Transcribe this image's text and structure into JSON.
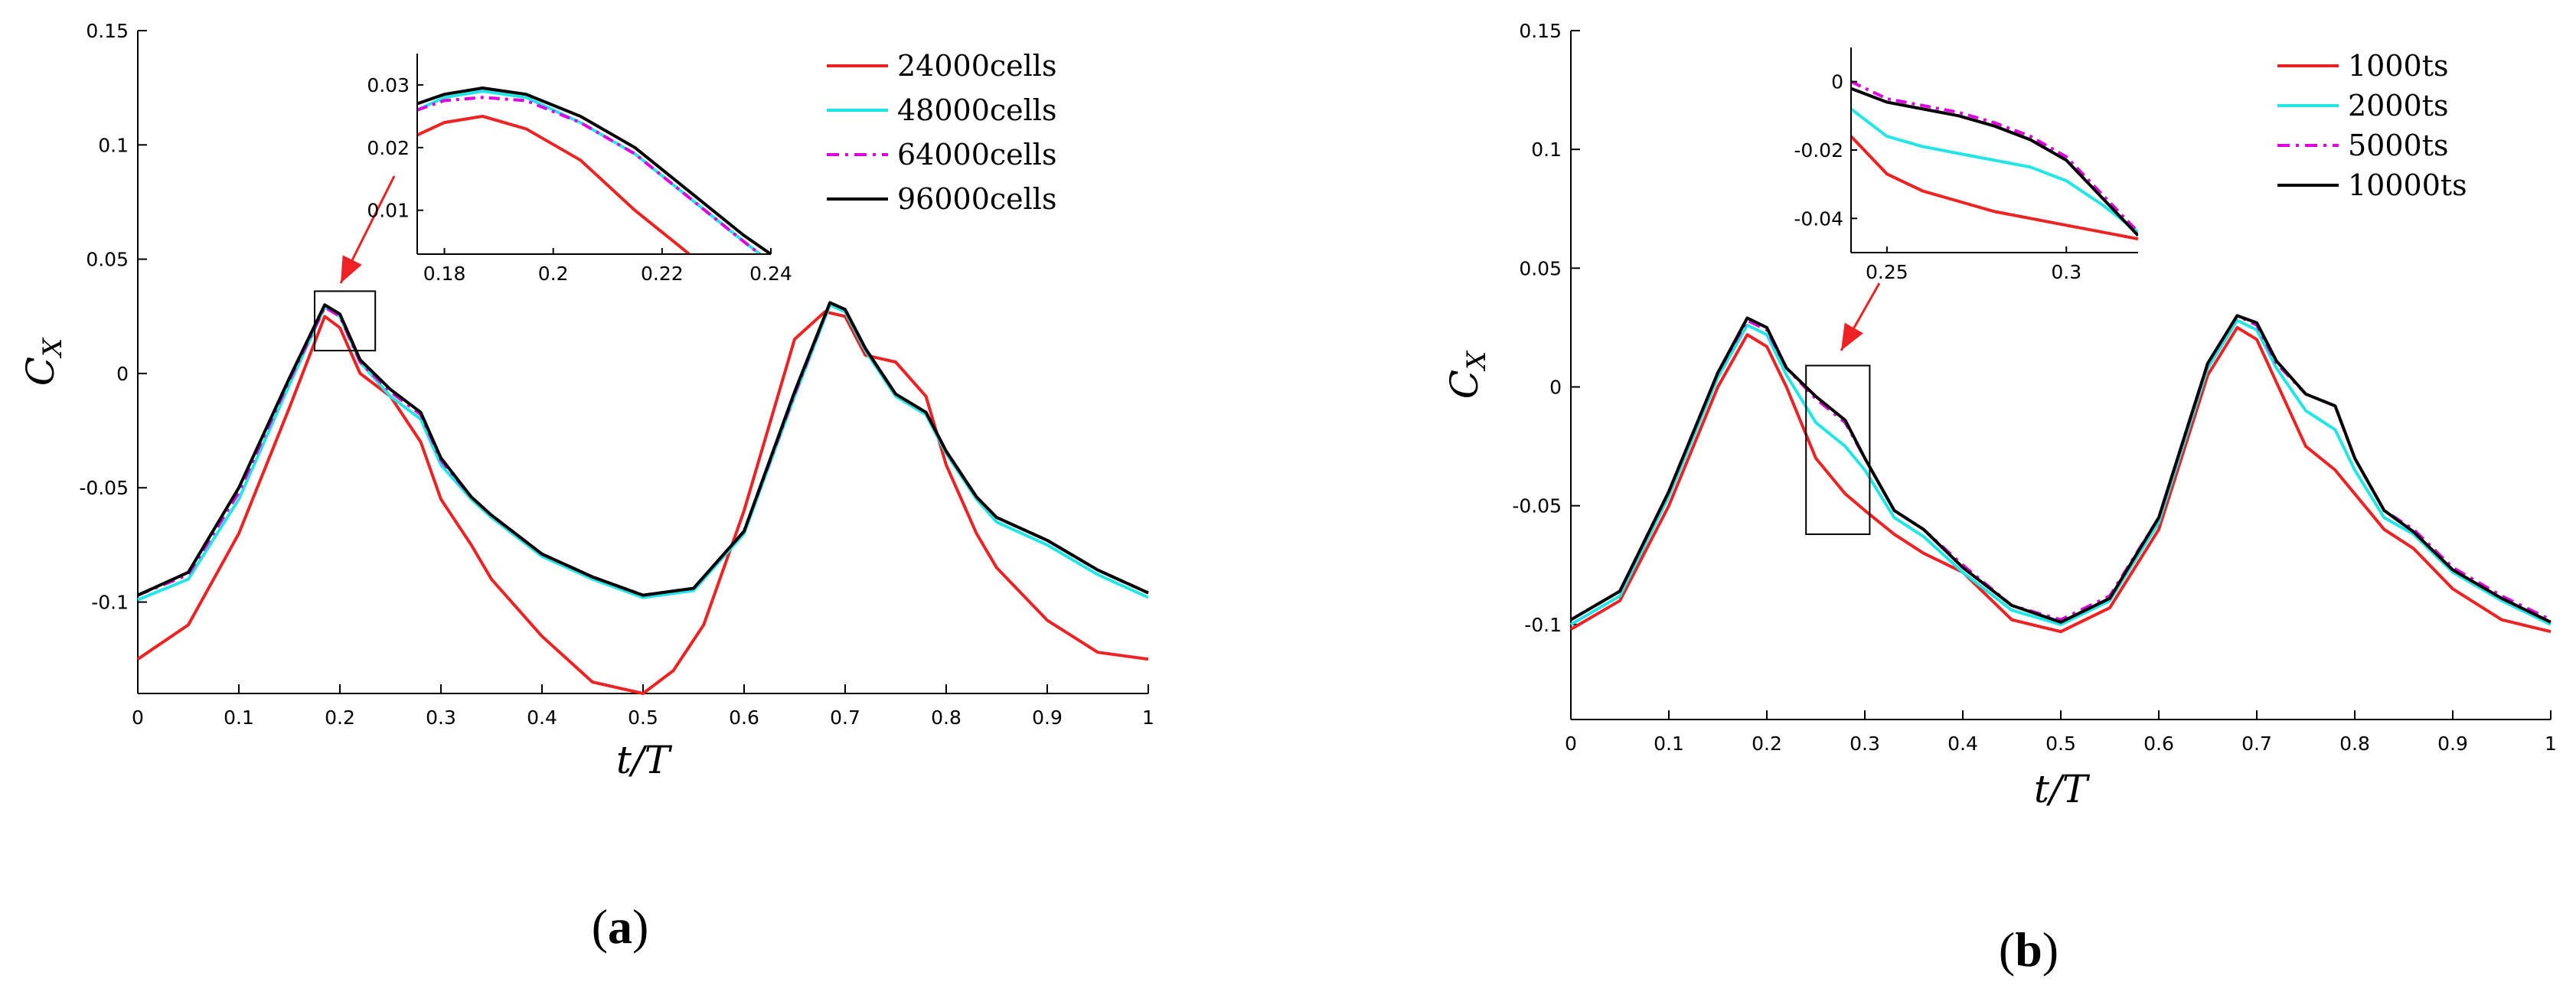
{
  "colors": {
    "red": "#ee2222",
    "cyan": "#22e6e6",
    "magenta": "#e000e0",
    "black": "#000000",
    "arrow": "#ee2222"
  },
  "chart_data": [
    {
      "type": "line",
      "panel": "a",
      "panel_label_parts": [
        "(",
        "a",
        ")"
      ],
      "xlabel": "t/T",
      "ylabel": "C_X",
      "ylabel_main": "C",
      "ylabel_sub": "X",
      "xlim": [
        0,
        1
      ],
      "ylim": [
        -0.14,
        0.15
      ],
      "xticks": [
        "0",
        "0.1",
        "0.2",
        "0.3",
        "0.4",
        "0.5",
        "0.6",
        "0.7",
        "0.8",
        "0.9",
        "1"
      ],
      "yticks": [
        "-0.1",
        "-0.05",
        "0",
        "0.05",
        "0.1",
        "0.15"
      ],
      "ytick_values": [
        -0.1,
        -0.05,
        0,
        0.05,
        0.1,
        0.15
      ],
      "legend_position": "top-right",
      "series": [
        {
          "name": "24000cells",
          "color": "red",
          "style": "solid",
          "x": [
            0,
            0.05,
            0.1,
            0.15,
            0.185,
            0.2,
            0.22,
            0.25,
            0.28,
            0.3,
            0.33,
            0.35,
            0.4,
            0.45,
            0.5,
            0.53,
            0.56,
            0.6,
            0.65,
            0.68,
            0.7,
            0.72,
            0.75,
            0.78,
            0.8,
            0.83,
            0.85,
            0.9,
            0.95,
            1.0
          ],
          "y": [
            -0.125,
            -0.11,
            -0.07,
            -0.015,
            0.025,
            0.02,
            0.0,
            -0.01,
            -0.03,
            -0.055,
            -0.075,
            -0.09,
            -0.115,
            -0.135,
            -0.14,
            -0.13,
            -0.11,
            -0.06,
            0.015,
            0.027,
            0.025,
            0.008,
            0.005,
            -0.01,
            -0.04,
            -0.07,
            -0.085,
            -0.108,
            -0.122,
            -0.125
          ]
        },
        {
          "name": "48000cells",
          "color": "cyan",
          "style": "solid",
          "x": [
            0,
            0.05,
            0.1,
            0.15,
            0.185,
            0.2,
            0.22,
            0.25,
            0.28,
            0.3,
            0.33,
            0.35,
            0.4,
            0.45,
            0.5,
            0.55,
            0.6,
            0.65,
            0.685,
            0.7,
            0.72,
            0.75,
            0.78,
            0.8,
            0.83,
            0.85,
            0.9,
            0.95,
            1.0
          ],
          "y": [
            -0.099,
            -0.09,
            -0.055,
            -0.005,
            0.029,
            0.025,
            0.005,
            -0.01,
            -0.02,
            -0.04,
            -0.055,
            -0.063,
            -0.08,
            -0.09,
            -0.098,
            -0.095,
            -0.07,
            -0.01,
            0.03,
            0.027,
            0.01,
            -0.01,
            -0.018,
            -0.035,
            -0.055,
            -0.065,
            -0.075,
            -0.088,
            -0.098
          ]
        },
        {
          "name": "64000cells",
          "color": "magenta",
          "style": "dashdot",
          "x": [
            0,
            0.05,
            0.1,
            0.15,
            0.185,
            0.2,
            0.22,
            0.25,
            0.28,
            0.3,
            0.33,
            0.35,
            0.4,
            0.45,
            0.5,
            0.55,
            0.6,
            0.65,
            0.685,
            0.7,
            0.72,
            0.75,
            0.78,
            0.8,
            0.83,
            0.85,
            0.9,
            0.95,
            1.0
          ],
          "y": [
            -0.097,
            -0.088,
            -0.052,
            -0.003,
            0.029,
            0.025,
            0.005,
            -0.008,
            -0.018,
            -0.038,
            -0.054,
            -0.062,
            -0.079,
            -0.089,
            -0.097,
            -0.094,
            -0.069,
            -0.009,
            0.031,
            0.028,
            0.011,
            -0.009,
            -0.017,
            -0.034,
            -0.054,
            -0.063,
            -0.073,
            -0.086,
            -0.096
          ]
        },
        {
          "name": "96000cells",
          "color": "black",
          "style": "solid",
          "x": [
            0,
            0.05,
            0.1,
            0.15,
            0.185,
            0.2,
            0.22,
            0.25,
            0.28,
            0.3,
            0.33,
            0.35,
            0.4,
            0.45,
            0.5,
            0.55,
            0.6,
            0.65,
            0.685,
            0.7,
            0.72,
            0.75,
            0.78,
            0.8,
            0.83,
            0.85,
            0.9,
            0.95,
            1.0
          ],
          "y": [
            -0.097,
            -0.087,
            -0.05,
            -0.002,
            0.03,
            0.026,
            0.006,
            -0.007,
            -0.017,
            -0.037,
            -0.054,
            -0.062,
            -0.079,
            -0.089,
            -0.097,
            -0.094,
            -0.069,
            -0.008,
            0.031,
            0.028,
            0.011,
            -0.009,
            -0.017,
            -0.034,
            -0.054,
            -0.063,
            -0.073,
            -0.086,
            -0.096
          ]
        }
      ],
      "zoom_box": {
        "x": [
          0.175,
          0.235
        ],
        "y": [
          0.01,
          0.036
        ]
      },
      "inset": {
        "xlim": [
          0.175,
          0.24
        ],
        "ylim": [
          0.003,
          0.035
        ],
        "xticks": [
          "0.18",
          "0.2",
          "0.22",
          "0.24"
        ],
        "xtick_values": [
          0.18,
          0.2,
          0.22,
          0.24
        ],
        "yticks": [
          "0.01",
          "0.02",
          "0.03"
        ],
        "ytick_values": [
          0.01,
          0.02,
          0.03
        ],
        "series": [
          {
            "color": "red",
            "style": "solid",
            "x": [
              0.175,
              0.18,
              0.187,
              0.195,
              0.205,
              0.215,
              0.225
            ],
            "y": [
              0.022,
              0.024,
              0.025,
              0.023,
              0.018,
              0.01,
              0.003
            ]
          },
          {
            "color": "cyan",
            "style": "solid",
            "x": [
              0.175,
              0.18,
              0.187,
              0.195,
              0.205,
              0.215,
              0.225,
              0.235,
              0.238
            ],
            "y": [
              0.026,
              0.028,
              0.029,
              0.028,
              0.024,
              0.019,
              0.012,
              0.005,
              0.003
            ]
          },
          {
            "color": "magenta",
            "style": "dashdot",
            "x": [
              0.175,
              0.18,
              0.187,
              0.195,
              0.205,
              0.215,
              0.225,
              0.235,
              0.238
            ],
            "y": [
              0.026,
              0.0275,
              0.028,
              0.0275,
              0.024,
              0.019,
              0.012,
              0.005,
              0.003
            ]
          },
          {
            "color": "black",
            "style": "solid",
            "x": [
              0.175,
              0.18,
              0.187,
              0.195,
              0.205,
              0.215,
              0.225,
              0.235,
              0.24
            ],
            "y": [
              0.027,
              0.0285,
              0.0295,
              0.0285,
              0.025,
              0.02,
              0.013,
              0.006,
              0.003
            ]
          }
        ]
      }
    },
    {
      "type": "line",
      "panel": "b",
      "panel_label_parts": [
        "(",
        "b",
        ")"
      ],
      "xlabel": "t/T",
      "ylabel": "C_X",
      "ylabel_main": "C",
      "ylabel_sub": "X",
      "xlim": [
        0,
        1
      ],
      "ylim": [
        -0.14,
        0.15
      ],
      "xticks": [
        "0",
        "0.1",
        "0.2",
        "0.3",
        "0.4",
        "0.5",
        "0.6",
        "0.7",
        "0.8",
        "0.9",
        "1"
      ],
      "yticks": [
        "-0.1",
        "-0.05",
        "0",
        "0.05",
        "0.1",
        "0.15"
      ],
      "ytick_values": [
        -0.1,
        -0.05,
        0,
        0.05,
        0.1,
        0.15
      ],
      "legend_position": "top-right",
      "series": [
        {
          "name": "1000ts",
          "color": "red",
          "style": "solid",
          "x": [
            0,
            0.05,
            0.1,
            0.15,
            0.18,
            0.2,
            0.22,
            0.25,
            0.28,
            0.3,
            0.33,
            0.36,
            0.4,
            0.45,
            0.5,
            0.55,
            0.6,
            0.65,
            0.68,
            0.7,
            0.72,
            0.75,
            0.78,
            0.8,
            0.83,
            0.86,
            0.9,
            0.95,
            1.0
          ],
          "y": [
            -0.102,
            -0.09,
            -0.05,
            0.0,
            0.022,
            0.017,
            0.0,
            -0.03,
            -0.045,
            -0.052,
            -0.062,
            -0.07,
            -0.078,
            -0.098,
            -0.103,
            -0.093,
            -0.06,
            0.005,
            0.025,
            0.02,
            0.002,
            -0.025,
            -0.035,
            -0.045,
            -0.06,
            -0.068,
            -0.085,
            -0.098,
            -0.103
          ]
        },
        {
          "name": "2000ts",
          "color": "cyan",
          "style": "solid",
          "x": [
            0,
            0.05,
            0.1,
            0.15,
            0.18,
            0.2,
            0.22,
            0.25,
            0.28,
            0.3,
            0.33,
            0.36,
            0.4,
            0.45,
            0.5,
            0.55,
            0.6,
            0.65,
            0.68,
            0.7,
            0.72,
            0.75,
            0.78,
            0.8,
            0.83,
            0.86,
            0.9,
            0.95,
            1.0
          ],
          "y": [
            -0.1,
            -0.088,
            -0.046,
            0.004,
            0.026,
            0.022,
            0.005,
            -0.015,
            -0.025,
            -0.035,
            -0.055,
            -0.063,
            -0.078,
            -0.094,
            -0.1,
            -0.09,
            -0.057,
            0.008,
            0.028,
            0.024,
            0.008,
            -0.01,
            -0.018,
            -0.035,
            -0.055,
            -0.062,
            -0.078,
            -0.09,
            -0.1
          ]
        },
        {
          "name": "5000ts",
          "color": "magenta",
          "style": "dashdot",
          "x": [
            0,
            0.05,
            0.1,
            0.15,
            0.18,
            0.2,
            0.22,
            0.25,
            0.28,
            0.3,
            0.33,
            0.36,
            0.4,
            0.45,
            0.5,
            0.55,
            0.6,
            0.65,
            0.68,
            0.7,
            0.72,
            0.75,
            0.78,
            0.8,
            0.83,
            0.86,
            0.9,
            0.95,
            1.0
          ],
          "y": [
            -0.098,
            -0.086,
            -0.044,
            0.006,
            0.028,
            0.024,
            0.008,
            -0.005,
            -0.015,
            -0.03,
            -0.052,
            -0.06,
            -0.075,
            -0.092,
            -0.098,
            -0.088,
            -0.055,
            0.01,
            0.03,
            0.026,
            0.01,
            -0.003,
            -0.008,
            -0.03,
            -0.052,
            -0.06,
            -0.076,
            -0.088,
            -0.098
          ]
        },
        {
          "name": "10000ts",
          "color": "black",
          "style": "solid",
          "x": [
            0,
            0.05,
            0.1,
            0.15,
            0.18,
            0.2,
            0.22,
            0.25,
            0.28,
            0.3,
            0.33,
            0.36,
            0.4,
            0.45,
            0.5,
            0.55,
            0.6,
            0.65,
            0.68,
            0.7,
            0.72,
            0.75,
            0.78,
            0.8,
            0.83,
            0.86,
            0.9,
            0.95,
            1.0
          ],
          "y": [
            -0.098,
            -0.086,
            -0.044,
            0.006,
            0.029,
            0.025,
            0.008,
            -0.004,
            -0.014,
            -0.03,
            -0.052,
            -0.06,
            -0.076,
            -0.092,
            -0.099,
            -0.089,
            -0.055,
            0.01,
            0.03,
            0.027,
            0.011,
            -0.003,
            -0.008,
            -0.03,
            -0.052,
            -0.061,
            -0.077,
            -0.089,
            -0.099
          ]
        }
      ],
      "zoom_box": {
        "x": [
          0.24,
          0.305
        ],
        "y": [
          -0.062,
          0.009
        ]
      },
      "inset": {
        "xlim": [
          0.24,
          0.32
        ],
        "ylim": [
          -0.05,
          0.01
        ],
        "xticks": [
          "0.25",
          "0.3"
        ],
        "xtick_values": [
          0.25,
          0.3
        ],
        "yticks": [
          "0",
          "-0.02",
          "-0.04"
        ],
        "ytick_values": [
          0,
          -0.02,
          -0.04
        ],
        "series": [
          {
            "color": "red",
            "style": "solid",
            "x": [
              0.24,
              0.25,
              0.26,
              0.27,
              0.28,
              0.29,
              0.3,
              0.31,
              0.32
            ],
            "y": [
              -0.016,
              -0.027,
              -0.032,
              -0.035,
              -0.038,
              -0.04,
              -0.042,
              -0.044,
              -0.046
            ]
          },
          {
            "color": "cyan",
            "style": "solid",
            "x": [
              0.24,
              0.25,
              0.26,
              0.27,
              0.28,
              0.29,
              0.3,
              0.31,
              0.32
            ],
            "y": [
              -0.008,
              -0.016,
              -0.019,
              -0.021,
              -0.023,
              -0.025,
              -0.029,
              -0.036,
              -0.044
            ]
          },
          {
            "color": "magenta",
            "style": "dashdot",
            "x": [
              0.24,
              0.25,
              0.26,
              0.27,
              0.28,
              0.29,
              0.3,
              0.31,
              0.32
            ],
            "y": [
              0.0,
              -0.005,
              -0.007,
              -0.009,
              -0.012,
              -0.016,
              -0.022,
              -0.033,
              -0.044
            ]
          },
          {
            "color": "black",
            "style": "solid",
            "x": [
              0.24,
              0.25,
              0.26,
              0.27,
              0.28,
              0.29,
              0.3,
              0.31,
              0.32
            ],
            "y": [
              -0.002,
              -0.006,
              -0.008,
              -0.01,
              -0.013,
              -0.017,
              -0.023,
              -0.034,
              -0.045
            ]
          }
        ]
      }
    }
  ]
}
